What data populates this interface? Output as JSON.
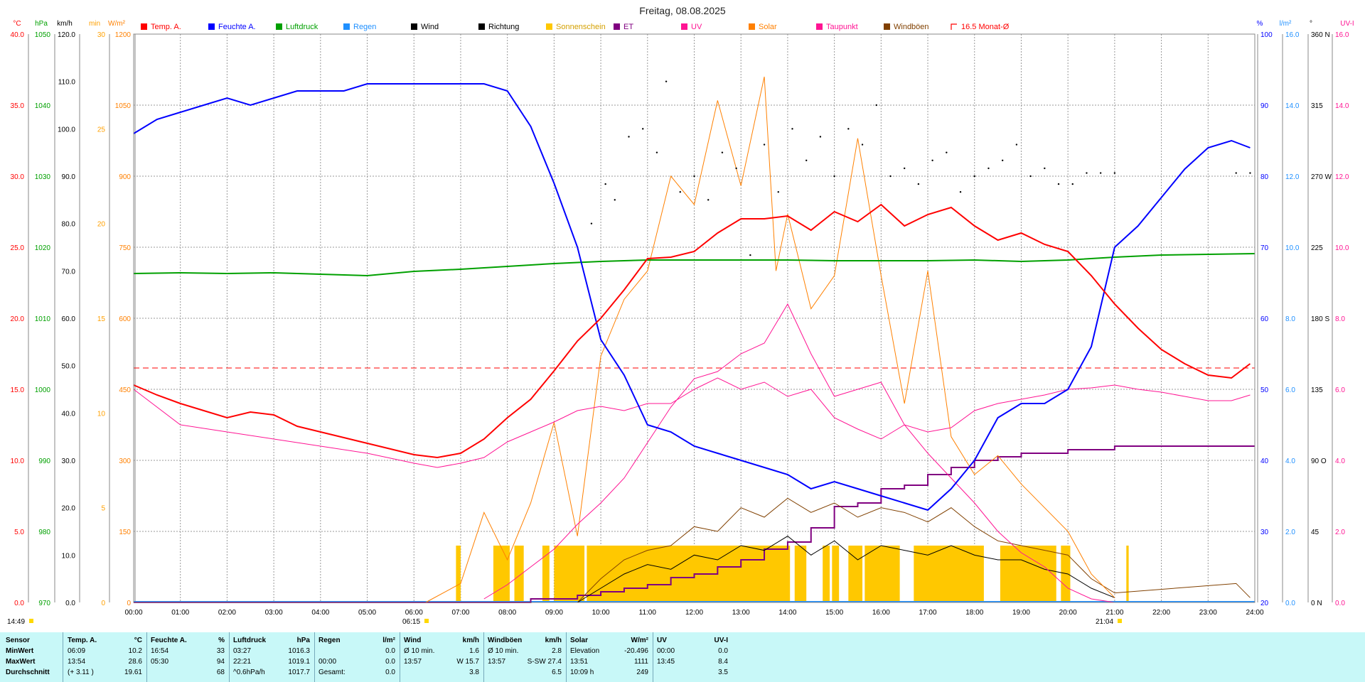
{
  "title": "Freitag, 08.08.2025",
  "current_time": "14:49",
  "sunrise": "06:15",
  "sunset": "21:04",
  "legend": [
    {
      "label": "Temp. A.",
      "color": "#ff0000",
      "marker": "box"
    },
    {
      "label": "Feuchte A.",
      "color": "#0000ff",
      "marker": "box"
    },
    {
      "label": "Luftdruck",
      "color": "#00a000",
      "marker": "box"
    },
    {
      "label": "Regen",
      "color": "#2090ff",
      "marker": "box"
    },
    {
      "label": "Wind",
      "color": "#000000",
      "marker": "box"
    },
    {
      "label": "Richtung",
      "color": "#000000",
      "marker": "box"
    },
    {
      "label": "Sonnenschein",
      "color": "#ffc800",
      "marker": "box"
    },
    {
      "label": "ET",
      "color": "#800080",
      "marker": "box"
    },
    {
      "label": "UV",
      "color": "#ff1493",
      "marker": "box"
    },
    {
      "label": "Solar",
      "color": "#ff8000",
      "marker": "box"
    },
    {
      "label": "Taupunkt",
      "color": "#ff1493",
      "marker": "box"
    },
    {
      "label": "Windböen",
      "color": "#804000",
      "marker": "box"
    },
    {
      "label": "16.5 Monat-Ø",
      "color": "#ff0000",
      "marker": "dash"
    }
  ],
  "axes_left": [
    {
      "unit": "°C",
      "color": "#ff0000",
      "ticks": [
        "40.0",
        "35.0",
        "30.0",
        "25.0",
        "20.0",
        "15.0",
        "10.0",
        "5.0",
        "0.0"
      ]
    },
    {
      "unit": "hPa",
      "color": "#00a000",
      "ticks": [
        "1050",
        "1040",
        "1030",
        "1020",
        "1010",
        "1000",
        "990",
        "980",
        "970"
      ]
    },
    {
      "unit": "km/h",
      "color": "#000000",
      "ticks": [
        "120.0",
        "110.0",
        "100.0",
        "90.0",
        "80.0",
        "70.0",
        "60.0",
        "50.0",
        "40.0",
        "30.0",
        "20.0",
        "10.0",
        "0.0"
      ]
    },
    {
      "unit": "min",
      "color": "#ffa000",
      "ticks": [
        "30",
        "25",
        "20",
        "15",
        "10",
        "5",
        "0"
      ]
    },
    {
      "unit": "W/m²",
      "color": "#ff8000",
      "ticks": [
        "1200",
        "1050",
        "900",
        "750",
        "600",
        "450",
        "300",
        "150",
        "0"
      ]
    }
  ],
  "axes_right": [
    {
      "unit": "%",
      "color": "#0000ff",
      "ticks": [
        "100",
        "90",
        "80",
        "70",
        "60",
        "50",
        "40",
        "30",
        "20"
      ]
    },
    {
      "unit": "l/m²",
      "color": "#2090ff",
      "ticks": [
        "16.0",
        "14.0",
        "12.0",
        "10.0",
        "8.0",
        "6.0",
        "4.0",
        "2.0",
        "0.0"
      ]
    },
    {
      "unit": "°",
      "color": "#000000",
      "ticks": [
        "360 N",
        "315",
        "270 W",
        "225",
        "180 S",
        "135",
        "90 O",
        "45",
        "0 N"
      ]
    },
    {
      "unit": "UV-I",
      "color": "#ff1493",
      "ticks": [
        "16.0",
        "14.0",
        "12.0",
        "10.0",
        "8.0",
        "6.0",
        "4.0",
        "2.0",
        "0.0"
      ]
    }
  ],
  "chart_data": {
    "type": "line",
    "x_ticks": [
      "00:00",
      "01:00",
      "02:00",
      "03:00",
      "04:00",
      "05:00",
      "06:00",
      "07:00",
      "08:00",
      "09:00",
      "10:00",
      "11:00",
      "12:00",
      "13:00",
      "14:00",
      "15:00",
      "16:00",
      "17:00",
      "18:00",
      "19:00",
      "20:00",
      "21:00",
      "22:00",
      "23:00",
      "24:00"
    ],
    "monthly_avg_temp": 16.5,
    "series": [
      {
        "name": "Temp. A.",
        "unit": "°C",
        "color": "#ff0000",
        "x": [
          0,
          0.5,
          1,
          1.5,
          2,
          2.5,
          3,
          3.5,
          4,
          4.5,
          5,
          5.5,
          6,
          6.5,
          7,
          7.5,
          8,
          8.5,
          9,
          9.5,
          10,
          10.5,
          11,
          11.5,
          12,
          12.5,
          13,
          13.5,
          14,
          14.5,
          15,
          15.5,
          16,
          16.5,
          17,
          17.5,
          18,
          18.5,
          19,
          19.5,
          20,
          20.5,
          21,
          21.5,
          22,
          22.5,
          23,
          23.5,
          23.9
        ],
        "y": [
          15.3,
          14.6,
          14.0,
          13.5,
          13.0,
          13.4,
          13.2,
          12.4,
          12.0,
          11.6,
          11.2,
          10.8,
          10.4,
          10.2,
          10.5,
          11.5,
          13.0,
          14.3,
          16.3,
          18.4,
          20.0,
          22.0,
          24.2,
          24.3,
          24.7,
          26.0,
          27.0,
          27.0,
          27.2,
          26.2,
          27.5,
          26.8,
          28.0,
          26.5,
          27.3,
          27.8,
          26.5,
          25.5,
          26.0,
          25.2,
          24.7,
          23.0,
          21.0,
          19.3,
          17.8,
          16.8,
          16.0,
          15.8,
          16.8
        ]
      },
      {
        "name": "Feuchte A.",
        "unit": "%",
        "color": "#0000ff",
        "x": [
          0,
          0.5,
          1,
          1.5,
          2,
          2.5,
          3,
          3.5,
          4,
          4.5,
          5,
          5.5,
          6,
          6.5,
          7,
          7.5,
          8,
          8.5,
          9,
          9.5,
          10,
          10.5,
          11,
          11.5,
          12,
          12.5,
          13,
          13.5,
          14,
          14.5,
          15,
          15.5,
          16,
          16.5,
          17,
          17.5,
          18,
          18.5,
          19,
          19.5,
          20,
          20.5,
          21,
          21.5,
          22,
          22.5,
          23,
          23.5,
          23.9
        ],
        "y": [
          86,
          88,
          89,
          90,
          91,
          90,
          91,
          92,
          92,
          92,
          93,
          93,
          93,
          93,
          93,
          93,
          92,
          87,
          79,
          70,
          57,
          52,
          45,
          44,
          42,
          41,
          40,
          39,
          38,
          36,
          37,
          36,
          35,
          34,
          33,
          36,
          40,
          46,
          48,
          48,
          50,
          56,
          70,
          73,
          77,
          81,
          84,
          85,
          84
        ]
      },
      {
        "name": "Luftdruck",
        "unit": "hPa",
        "color": "#00a000",
        "x": [
          0,
          1,
          2,
          3,
          4,
          5,
          6,
          7,
          8,
          9,
          10,
          11,
          12,
          13,
          14,
          15,
          16,
          17,
          18,
          19,
          20,
          21,
          22,
          23,
          24
        ],
        "y": [
          1016.3,
          1016.4,
          1016.3,
          1016.4,
          1016.2,
          1016.0,
          1016.6,
          1016.9,
          1017.3,
          1017.7,
          1018.0,
          1018.2,
          1018.2,
          1018.2,
          1018.2,
          1018.1,
          1018.1,
          1018.1,
          1018.2,
          1018.0,
          1018.2,
          1018.6,
          1018.9,
          1019.0,
          1019.1
        ]
      },
      {
        "name": "Taupunkt",
        "unit": "°C",
        "color": "#ff1493",
        "x": [
          0,
          1,
          2,
          3,
          4,
          5,
          6,
          6.5,
          7,
          7.5,
          8,
          8.5,
          9,
          9.5,
          10,
          10.5,
          11,
          11.5,
          12,
          12.5,
          13,
          13.5,
          14,
          14.5,
          15,
          15.5,
          16,
          16.5,
          17,
          17.5,
          18,
          18.5,
          19,
          19.5,
          20,
          20.5,
          21,
          21.5,
          22,
          22.5,
          23,
          23.5,
          23.9
        ],
        "y": [
          15.0,
          12.5,
          12.0,
          11.5,
          11.0,
          10.5,
          9.8,
          9.5,
          9.8,
          10.2,
          11.3,
          12.0,
          12.7,
          13.5,
          13.8,
          13.5,
          14.0,
          14.0,
          15.0,
          15.8,
          15.0,
          15.5,
          14.5,
          15.0,
          13.0,
          12.2,
          11.5,
          12.5,
          12.0,
          12.3,
          13.5,
          14.0,
          14.3,
          14.6,
          15.0,
          15.1,
          15.3,
          15.0,
          14.8,
          14.5,
          14.2,
          14.2,
          14.6
        ]
      },
      {
        "name": "UV",
        "unit": "UV-I",
        "color": "#ff1493",
        "x": [
          7.5,
          8,
          8.5,
          9,
          9.5,
          10,
          10.5,
          11,
          11.5,
          12,
          12.5,
          13,
          13.5,
          14,
          14.5,
          15,
          15.5,
          16,
          16.5,
          17,
          17.5,
          18,
          18.5,
          19,
          19.5,
          20,
          20.5,
          21
        ],
        "y": [
          0.1,
          0.5,
          1.0,
          1.5,
          2.2,
          2.8,
          3.5,
          4.5,
          5.5,
          6.3,
          6.5,
          7.0,
          7.3,
          8.4,
          7.0,
          5.8,
          6.0,
          6.2,
          5.0,
          4.2,
          3.5,
          2.8,
          2.0,
          1.4,
          1.0,
          0.4,
          0.1,
          0.0
        ]
      },
      {
        "name": "Solar",
        "unit": "W/m²",
        "color": "#ff8000",
        "x": [
          6.25,
          7,
          7.5,
          8,
          8.5,
          9,
          9.5,
          10,
          10.5,
          11,
          11.5,
          12,
          12.5,
          13,
          13.5,
          13.75,
          14,
          14.5,
          15,
          15.5,
          16,
          16.5,
          17,
          17.5,
          18,
          18.5,
          19,
          19.5,
          20,
          20.5,
          21
        ],
        "y": [
          0,
          40,
          190,
          90,
          210,
          380,
          140,
          520,
          640,
          700,
          900,
          840,
          1060,
          880,
          1110,
          700,
          820,
          620,
          690,
          980,
          690,
          420,
          700,
          350,
          270,
          310,
          250,
          200,
          150,
          60,
          10
        ]
      },
      {
        "name": "Wind",
        "unit": "km/h",
        "color": "#000000",
        "x": [
          9.5,
          10,
          10.5,
          11,
          11.5,
          12,
          12.5,
          13,
          13.5,
          14,
          14.5,
          15,
          15.5,
          16,
          16.5,
          17,
          17.5,
          18,
          18.5,
          19,
          19.5,
          20,
          20.5,
          21
        ],
        "y": [
          0,
          3,
          6,
          8,
          7,
          10,
          9,
          12,
          11,
          14,
          10,
          13,
          9,
          12,
          11,
          10,
          12,
          10,
          9,
          9,
          7,
          6,
          3,
          1
        ]
      },
      {
        "name": "Windböen",
        "unit": "km/h",
        "color": "#804000",
        "x": [
          9.5,
          10,
          10.5,
          11,
          11.5,
          12,
          12.5,
          13,
          13.5,
          14,
          14.5,
          15,
          15.5,
          16,
          16.5,
          17,
          17.5,
          18,
          18.5,
          19,
          19.5,
          20,
          20.5,
          21,
          23.6,
          23.9
        ],
        "y": [
          0,
          5,
          9,
          11,
          12,
          16,
          15,
          20,
          18,
          22,
          19,
          21,
          18,
          20,
          19,
          17,
          20,
          16,
          13,
          12,
          11,
          10,
          5,
          2,
          4,
          1
        ]
      },
      {
        "name": "ET",
        "unit": "l/m²",
        "color": "#800080",
        "x": [
          0,
          8,
          8.5,
          9,
          9.5,
          10,
          10.5,
          11,
          11.5,
          12,
          12.5,
          13,
          13.5,
          14,
          14.5,
          15,
          15.5,
          16,
          16.5,
          17,
          17.5,
          18,
          18.5,
          19,
          19.5,
          20,
          20.5,
          21,
          22,
          23,
          24
        ],
        "y": [
          0,
          0,
          0.1,
          0.1,
          0.2,
          0.3,
          0.4,
          0.5,
          0.7,
          0.8,
          1.0,
          1.2,
          1.5,
          1.7,
          2.1,
          2.7,
          2.8,
          3.2,
          3.3,
          3.6,
          3.8,
          4.0,
          4.1,
          4.2,
          4.2,
          4.3,
          4.3,
          4.4,
          4.4,
          4.4,
          4.4
        ]
      },
      {
        "name": "Richtung",
        "unit": "°",
        "color": "#000000",
        "x": [
          9.8,
          10.1,
          10.3,
          10.6,
          10.9,
          11.2,
          11.4,
          11.7,
          12.0,
          12.3,
          12.6,
          12.9,
          13.2,
          13.5,
          13.8,
          14.1,
          14.4,
          14.7,
          15.0,
          15.3,
          15.6,
          15.9,
          16.2,
          16.5,
          16.8,
          17.1,
          17.4,
          17.7,
          18.0,
          18.3,
          18.6,
          18.9,
          19.2,
          19.5,
          19.8,
          20.1,
          20.4,
          20.7,
          21.0,
          23.6,
          23.9
        ],
        "y": [
          240,
          265,
          255,
          295,
          300,
          285,
          330,
          260,
          270,
          255,
          285,
          275,
          220,
          290,
          260,
          300,
          280,
          295,
          270,
          300,
          290,
          315,
          270,
          275,
          265,
          280,
          285,
          260,
          270,
          275,
          280,
          290,
          270,
          275,
          265,
          265,
          272,
          272,
          272,
          272,
          272
        ]
      }
    ],
    "sunshine_blocks": [
      [
        6.9,
        7.0
      ],
      [
        7.7,
        8.05
      ],
      [
        8.15,
        8.35
      ],
      [
        8.75,
        8.9
      ],
      [
        9.0,
        9.65
      ],
      [
        9.7,
        14.05
      ],
      [
        14.15,
        14.4
      ],
      [
        14.75,
        14.9
      ],
      [
        14.95,
        15.1
      ],
      [
        15.3,
        15.6
      ],
      [
        15.65,
        16.4
      ],
      [
        16.7,
        18.2
      ],
      [
        18.55,
        19.75
      ],
      [
        19.85,
        20.05
      ],
      [
        21.25,
        21.3
      ]
    ]
  },
  "table": {
    "headers": [
      "Sensor",
      "Temp. A.",
      "°C",
      "Feuchte A.",
      "%",
      "Luftdruck",
      "hPa",
      "Regen",
      "l/m²",
      "Wind",
      "km/h",
      "Windböen",
      "km/h",
      "Solar",
      "W/m²",
      "UV",
      "UV-I"
    ],
    "row_labels": [
      "MinWert",
      "MaxWert",
      "Durchschnitt"
    ],
    "temp": [
      [
        "06:09",
        "10.2"
      ],
      [
        "13:54",
        "28.6"
      ],
      [
        "(+ 3.11 )",
        "19.61"
      ]
    ],
    "humidity": [
      [
        "16:54",
        "33"
      ],
      [
        "05:30",
        "94"
      ],
      [
        "",
        "68"
      ]
    ],
    "pressure": [
      [
        "03:27",
        "1016.3"
      ],
      [
        "22:21",
        "1019.1"
      ],
      [
        "^0.6hPa/h",
        "1017.7"
      ]
    ],
    "rain": [
      [
        "",
        "0.0"
      ],
      [
        "00:00",
        "0.0"
      ],
      [
        "Gesamt:",
        "0.0"
      ]
    ],
    "wind": [
      [
        "Ø 10 min.",
        "1.6"
      ],
      [
        "13:57",
        "W 15.7"
      ],
      [
        "",
        "3.8"
      ]
    ],
    "gusts": [
      [
        "Ø 10 min.",
        "2.8"
      ],
      [
        "13:57",
        "S-SW 27.4"
      ],
      [
        "",
        "6.5"
      ]
    ],
    "solar": [
      [
        "Elevation",
        "-20.496"
      ],
      [
        "13:51",
        "1111"
      ],
      [
        "10:09 h",
        "249"
      ]
    ],
    "uv": [
      [
        "00:00",
        "0.0"
      ],
      [
        "13:45",
        "8.4"
      ],
      [
        "",
        "3.5"
      ]
    ]
  }
}
